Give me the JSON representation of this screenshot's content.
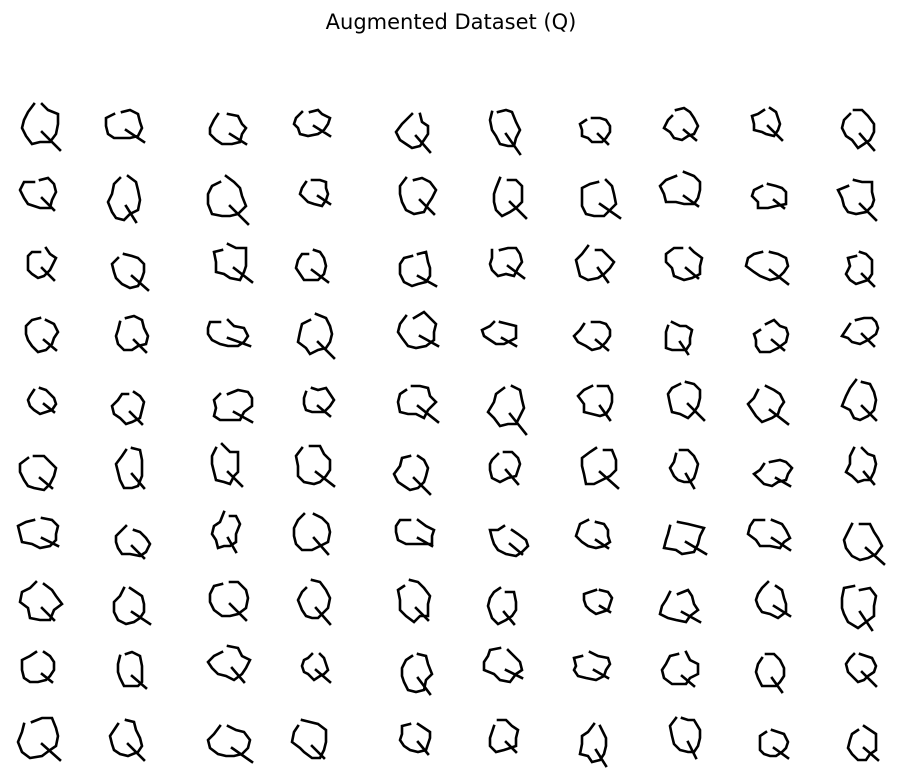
{
  "title": "Augmented Dataset (Q)",
  "grid": {
    "rows": 10,
    "cols": 10,
    "glyph": "Q",
    "ink_color": "#000000",
    "background": "#ffffff"
  }
}
